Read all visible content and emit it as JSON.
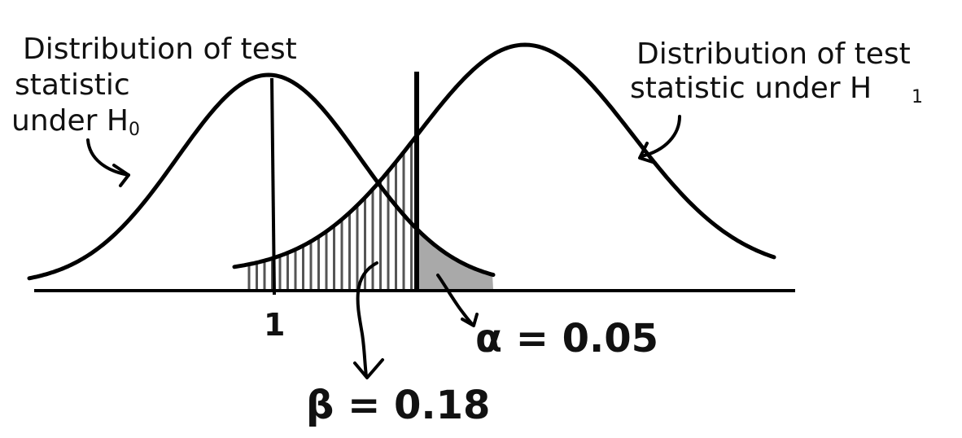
{
  "labels": {
    "h0_line1": "Distribution of test",
    "h0_line2": "statistic",
    "h0_line3": "under H",
    "h0_sub": "0",
    "h1_line1": "Distribution of test",
    "h1_line2": "statistic under H",
    "h1_sub": "1",
    "mean_tick": "1",
    "alpha": "α = 0.05",
    "beta": "β = 0.18"
  },
  "colors": {
    "ink": "#000000",
    "hatch": "#555555",
    "alpha_fill": "#9a9a9a",
    "background": "#ffffff"
  }
}
